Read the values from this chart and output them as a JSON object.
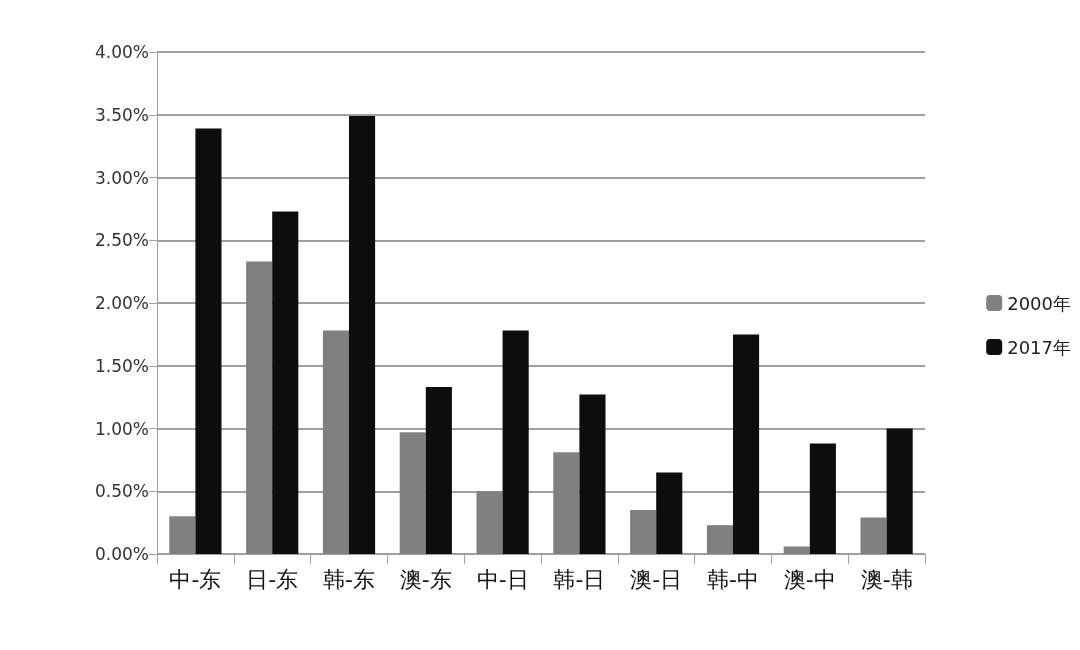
{
  "chart_data": {
    "type": "bar",
    "categories": [
      "中-东",
      "日-东",
      "韩-东",
      "澳-东",
      "中-日",
      "韩-日",
      "澳-日",
      "韩-中",
      "澳-中",
      "澳-韩"
    ],
    "series": [
      {
        "name": "2000年",
        "color": "#808080",
        "values": [
          0.3,
          2.33,
          1.78,
          0.97,
          0.5,
          0.81,
          0.35,
          0.23,
          0.06,
          0.29
        ]
      },
      {
        "name": "2017年",
        "color": "#0d0d0d",
        "values": [
          3.39,
          2.73,
          3.49,
          1.33,
          1.78,
          1.27,
          0.65,
          1.75,
          0.88,
          1.0
        ]
      }
    ],
    "ylim": [
      0,
      4
    ],
    "yticks": [
      {
        "value": 0,
        "label": "0.00%"
      },
      {
        "value": 0.5,
        "label": "0.50%"
      },
      {
        "value": 1,
        "label": "1.00%"
      },
      {
        "value": 1.5,
        "label": "1.50%"
      },
      {
        "value": 2,
        "label": "2.00%"
      },
      {
        "value": 2.5,
        "label": "2.50%"
      },
      {
        "value": 3,
        "label": "3.00%"
      },
      {
        "value": 3.5,
        "label": "3.50%"
      },
      {
        "value": 4,
        "label": "4.00%"
      }
    ],
    "grid": "y",
    "legend": "right"
  }
}
